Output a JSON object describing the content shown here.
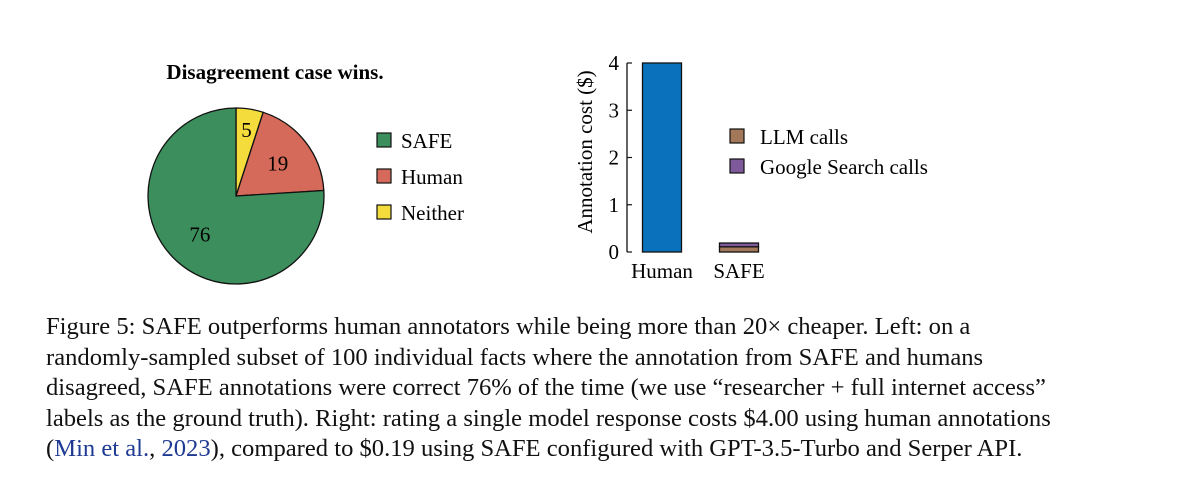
{
  "chart_data": [
    {
      "type": "pie",
      "title": "Disagreement case wins.",
      "slices": [
        {
          "label": "SAFE",
          "value": 76,
          "color": "#3c8e5c"
        },
        {
          "label": "Human",
          "value": 19,
          "color": "#d56a5a"
        },
        {
          "label": "Neither",
          "value": 5,
          "color": "#f3dc3c"
        }
      ],
      "legend_position": "right"
    },
    {
      "type": "bar",
      "stacked": true,
      "categories": [
        "Human",
        "SAFE"
      ],
      "series": [
        {
          "name": "Human annotation",
          "values": [
            4.0,
            0
          ],
          "color": "#0a72bd"
        },
        {
          "name": "LLM calls",
          "values": [
            0,
            0.11
          ],
          "color": "#a2775a"
        },
        {
          "name": "Google Search calls",
          "values": [
            0,
            0.08
          ],
          "color": "#7f5a9a"
        }
      ],
      "legend": [
        "LLM calls",
        "Google Search calls"
      ],
      "legend_position": "top-right",
      "ylabel": "Annotation cost ($)",
      "xlabel": "",
      "ylim": [
        0,
        4
      ],
      "yticks": [
        "0",
        "1",
        "2",
        "3",
        "4"
      ]
    }
  ],
  "caption": {
    "line1_a": "Figure 5: SAFE outperforms human annotators while being more than 20",
    "times_sign": "×",
    "line1_b": " cheaper. Left: on a",
    "line2": "randomly-sampled subset of 100 individual facts where the annotation from SAFE and humans",
    "line3": "disagreed, SAFE annotations were correct 76% of the time (we use “researcher + full internet access”",
    "line4": "labels as the ground truth). Right: rating a single model response costs $4.00 using human annotations",
    "line5_open": "(",
    "cite_author": "Min et al.",
    "cite_sep": ", ",
    "cite_year": "2023",
    "line5_rest": "), compared to $0.19 using SAFE configured with GPT-3.5-Turbo and Serper API."
  }
}
